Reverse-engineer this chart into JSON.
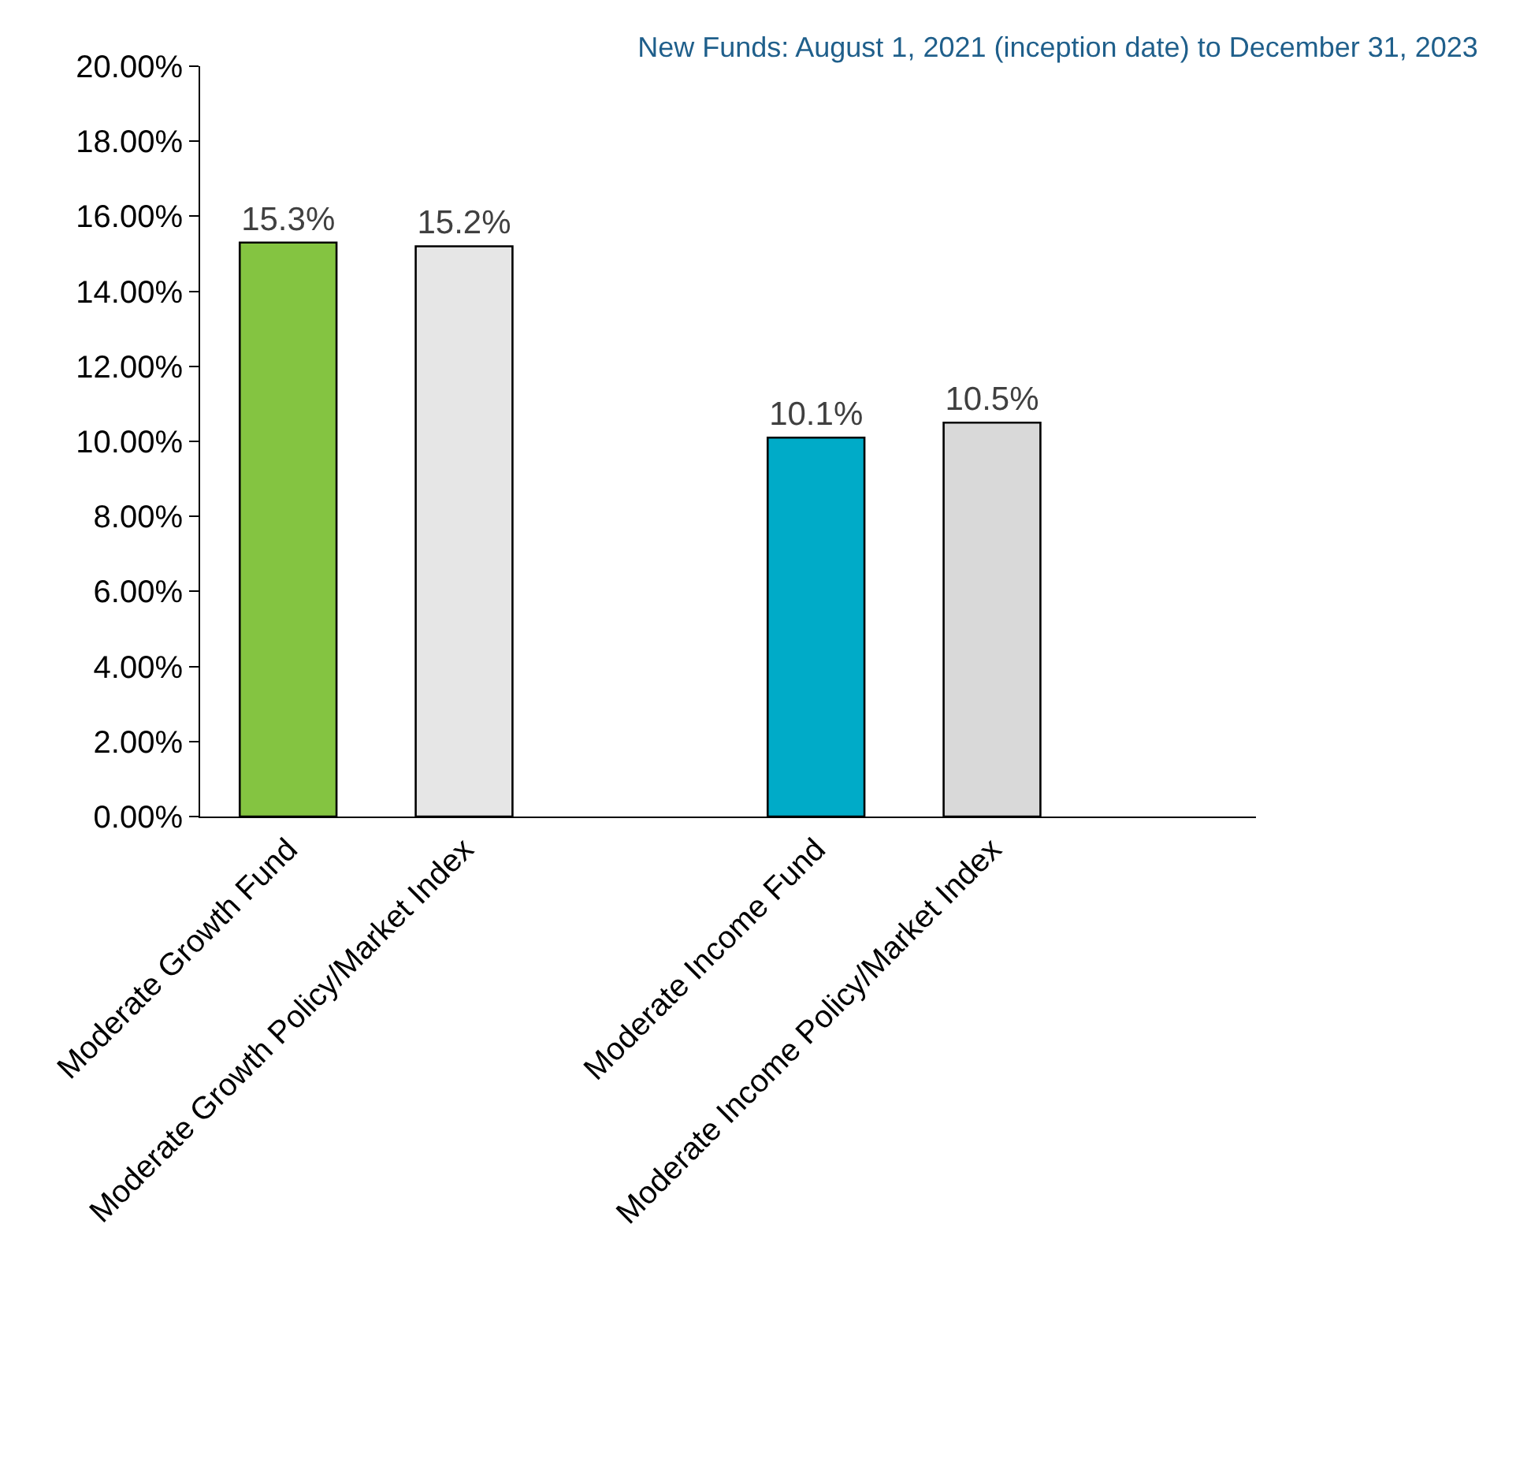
{
  "chart_data": {
    "type": "bar",
    "title": "New Funds: August 1, 2021 (inception date) to December 31, 2023",
    "categories": [
      "Moderate Growth Fund",
      "Moderate Growth Policy/Market Index",
      null,
      "Moderate Income Fund",
      "Moderate Income Policy/Market Index",
      null
    ],
    "values": [
      15.3,
      15.2,
      null,
      10.1,
      10.5,
      null
    ],
    "colors": [
      "#84c441",
      "#e6e6e6",
      "#ffffff",
      "#00abc8",
      "#d9d9d9",
      "#ffffff"
    ],
    "value_labels": [
      "15.3%",
      "15.2%",
      null,
      "10.1%",
      "10.5%",
      null
    ],
    "ylim": [
      0,
      20
    ],
    "yticks": [
      {
        "value": 0,
        "label": "0.00%"
      },
      {
        "value": 2,
        "label": "2.00%"
      },
      {
        "value": 4,
        "label": "4.00%"
      },
      {
        "value": 6,
        "label": "6.00%"
      },
      {
        "value": 8,
        "label": "8.00%"
      },
      {
        "value": 10,
        "label": "10.00%"
      },
      {
        "value": 12,
        "label": "12.00%"
      },
      {
        "value": 14,
        "label": "14.00%"
      },
      {
        "value": 16,
        "label": "16.00%"
      },
      {
        "value": 18,
        "label": "18.00%"
      },
      {
        "value": 20,
        "label": "20.00%"
      }
    ],
    "grid": false
  }
}
